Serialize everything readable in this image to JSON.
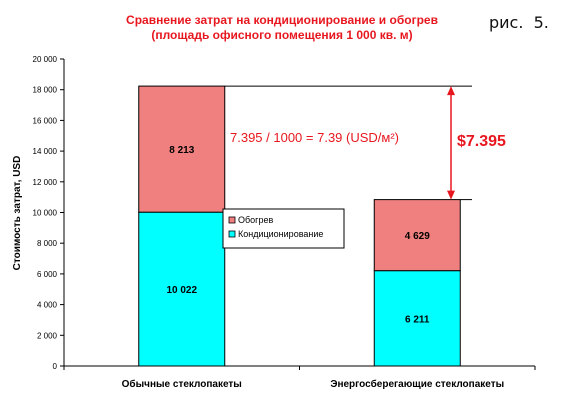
{
  "figure_label": "рис.  5.",
  "chart_data": {
    "type": "bar",
    "stacked": true,
    "title": "Сравнение затрат на кондиционирование и обогрев",
    "subtitle": "(площадь офисного помещения 1 000 кв. м)",
    "ylabel": "Стоимость затрат, USD",
    "xlabel": "",
    "ylim": [
      0,
      20000
    ],
    "yticks": [
      0,
      2000,
      4000,
      6000,
      8000,
      10000,
      12000,
      14000,
      16000,
      18000,
      20000
    ],
    "ytick_labels": [
      "0",
      "2 000",
      "4 000",
      "6 000",
      "8 000",
      "10 000",
      "12 000",
      "14 000",
      "16 000",
      "18 000",
      "20 000"
    ],
    "categories": [
      "Обычные стеклопакеты",
      "Энергосберегающие стеклопакеты"
    ],
    "series": [
      {
        "name": "Кондиционирование",
        "values": [
          10022,
          6211
        ],
        "labels": [
          "10 022",
          "6 211"
        ],
        "color": "#00ffff"
      },
      {
        "name": "Обогрев",
        "values": [
          8213,
          4629
        ],
        "labels": [
          "8 213",
          "4 629"
        ],
        "color": "#f08080"
      }
    ],
    "legend_position": "center",
    "grid": false,
    "annotations": {
      "formula": "7.395 / 1000 = 7.39 (USD/м²)",
      "difference": "$7.395"
    },
    "colors": {
      "title": "#e8171f",
      "annotation": "#e8171f",
      "bar_border": "#000000"
    }
  }
}
